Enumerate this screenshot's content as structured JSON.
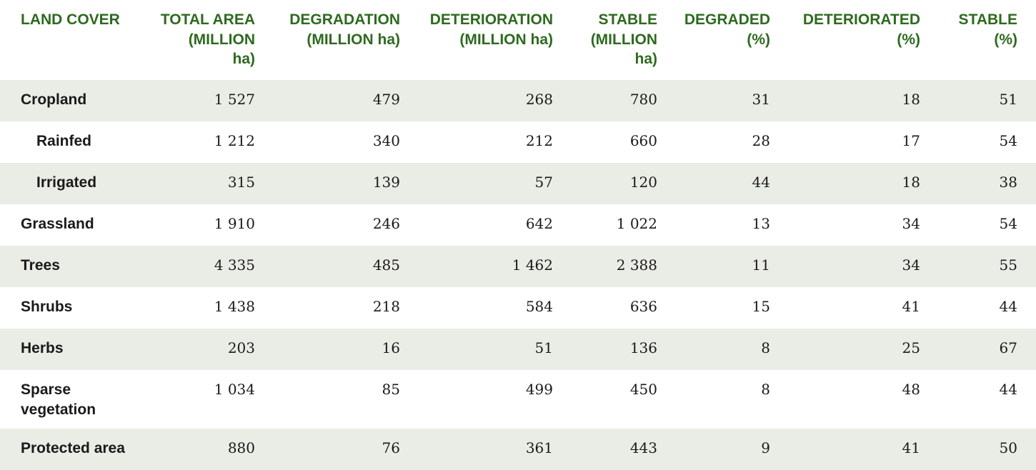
{
  "headers": {
    "land_cover": "LAND COVER",
    "total_area": "TOTAL AREA (MILLION ha)",
    "degradation": "DEGRADATION (MILLION ha)",
    "deterioration": "DETERIORATION (MILLION ha)",
    "stable": "STABLE (MILLION ha)",
    "degraded_pct": "DEGRADED (%)",
    "deteriorated_pct": "DETERIORATED (%)",
    "stable_pct": "STABLE (%)"
  },
  "header_lines": {
    "total_area": [
      "TOTAL AREA",
      "(MILLION",
      "ha)"
    ],
    "degradation": [
      "DEGRADATION",
      "(MILLION ha)"
    ],
    "deterioration": [
      "DETERIORATION",
      "(MILLION ha)"
    ],
    "stable": [
      "STABLE",
      "(MILLION",
      "ha)"
    ],
    "degraded_pct": [
      "DEGRADED",
      "(%)"
    ],
    "deteriorated_pct": [
      "DETERIORATED",
      "(%)"
    ],
    "stable_pct": [
      "STABLE",
      "(%)"
    ]
  },
  "rows": [
    {
      "label": "Cropland",
      "total_area": "1 527",
      "degradation": "479",
      "deterioration": "268",
      "stable": "780",
      "degraded_pct": "31",
      "deteriorated_pct": "18",
      "stable_pct": "51"
    },
    {
      "label": "Rainfed",
      "total_area": "1 212",
      "degradation": "340",
      "deterioration": "212",
      "stable": "660",
      "degraded_pct": "28",
      "deteriorated_pct": "17",
      "stable_pct": "54"
    },
    {
      "label": "Irrigated",
      "total_area": "315",
      "degradation": "139",
      "deterioration": "57",
      "stable": "120",
      "degraded_pct": "44",
      "deteriorated_pct": "18",
      "stable_pct": "38"
    },
    {
      "label": "Grassland",
      "total_area": "1 910",
      "degradation": "246",
      "deterioration": "642",
      "stable": "1 022",
      "degraded_pct": "13",
      "deteriorated_pct": "34",
      "stable_pct": "54"
    },
    {
      "label": "Trees",
      "total_area": "4 335",
      "degradation": "485",
      "deterioration": "1 462",
      "stable": "2 388",
      "degraded_pct": "11",
      "deteriorated_pct": "34",
      "stable_pct": "55"
    },
    {
      "label": "Shrubs",
      "total_area": "1 438",
      "degradation": "218",
      "deterioration": "584",
      "stable": "636",
      "degraded_pct": "15",
      "deteriorated_pct": "41",
      "stable_pct": "44"
    },
    {
      "label": "Herbs",
      "total_area": "203",
      "degradation": "16",
      "deterioration": "51",
      "stable": "136",
      "degraded_pct": "8",
      "deteriorated_pct": "25",
      "stable_pct": "67"
    },
    {
      "label": "Sparse vegetation",
      "total_area": "1 034",
      "degradation": "85",
      "deterioration": "499",
      "stable": "450",
      "degraded_pct": "8",
      "deteriorated_pct": "48",
      "stable_pct": "44"
    },
    {
      "label": "Protected area",
      "total_area": "880",
      "degradation": "76",
      "deterioration": "361",
      "stable": "443",
      "degraded_pct": "9",
      "deteriorated_pct": "41",
      "stable_pct": "50"
    }
  ],
  "colors": {
    "header_text": "#2e6a1f",
    "shaded_row": "#eaece6"
  }
}
